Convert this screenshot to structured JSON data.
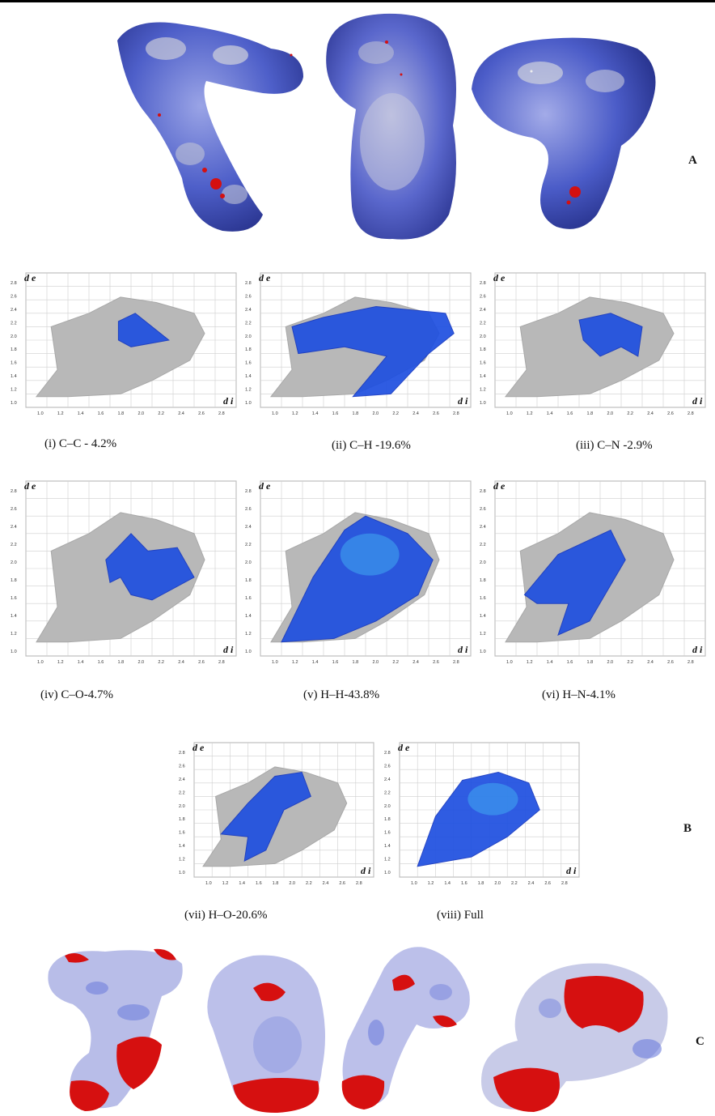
{
  "panels": {
    "a_label": "A",
    "b_label": "B",
    "c_label": "C"
  },
  "fingerprint_axes": {
    "y_label": "d e",
    "x_label": "d i",
    "y_ticks": [
      "2.8",
      "2.6",
      "2.4",
      "2.2",
      "2.0",
      "1.8",
      "1.6",
      "1.4",
      "1.2",
      "1.0"
    ],
    "x_ticks": [
      "1.0",
      "1.2",
      "1.4",
      "1.6",
      "1.8",
      "2.0",
      "2.2",
      "2.4",
      "2.6",
      "2.8"
    ]
  },
  "fingerprint_plots": [
    {
      "caption": "(i) C–C - 4.2%",
      "blue": "cc"
    },
    {
      "caption": "(ii) C–H -19.6%",
      "blue": "ch"
    },
    {
      "caption": "(iii) C–N -2.9%",
      "blue": "cn"
    },
    {
      "caption": "(iv) C–O-4.7%",
      "blue": "co"
    },
    {
      "caption": "(v) H–H-43.8%",
      "blue": "hh"
    },
    {
      "caption": "(vi) H–N-4.1%",
      "blue": "hn"
    },
    {
      "caption": "(vii) H–O-20.6%",
      "blue": "ho"
    },
    {
      "caption": "(viii) Full",
      "blue": "full"
    }
  ],
  "colors": {
    "grey_cloud": "#b8b8b8",
    "blue_cloud": "#1e4fe0",
    "surface_blue": "#4a5fc8",
    "surface_red": "#d41010"
  }
}
